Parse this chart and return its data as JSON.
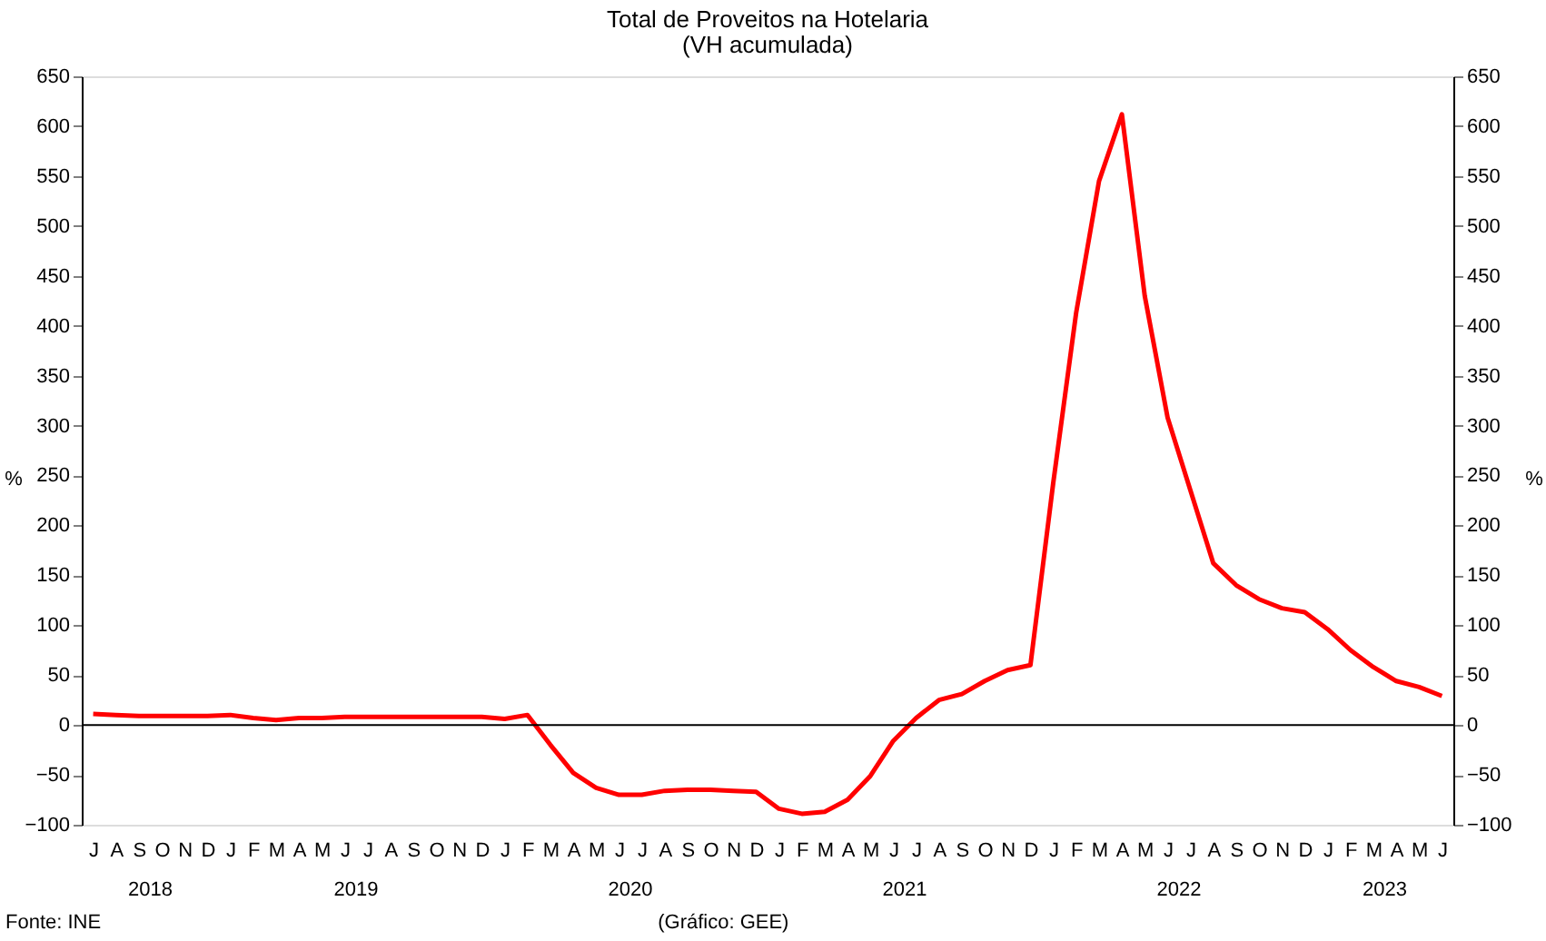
{
  "chart_data": {
    "type": "line",
    "title": "Total de Proveitos na Hotelaria",
    "subtitle": "(VH acumulada)",
    "ylabel": "%",
    "y2label": "%",
    "categories": [
      "J",
      "A",
      "S",
      "O",
      "N",
      "D",
      "J",
      "F",
      "M",
      "A",
      "M",
      "J",
      "J",
      "A",
      "S",
      "O",
      "N",
      "D",
      "J",
      "F",
      "M",
      "A",
      "M",
      "J",
      "J",
      "A",
      "S",
      "O",
      "N",
      "D",
      "J",
      "F",
      "M",
      "A",
      "M",
      "J",
      "J",
      "A",
      "S",
      "O",
      "N",
      "D",
      "J",
      "F",
      "M",
      "A",
      "M",
      "J",
      "J",
      "A",
      "S",
      "O",
      "N",
      "D",
      "J",
      "F",
      "M",
      "A",
      "M",
      "J"
    ],
    "series": [
      {
        "color": "#ff0000",
        "values": [
          11,
          10,
          9,
          9,
          9,
          9,
          10,
          7,
          5,
          7,
          7,
          8,
          8,
          8,
          8,
          8,
          8,
          8,
          6,
          10,
          -20,
          -48,
          -63,
          -70,
          -70,
          -66,
          -65,
          -65,
          -66,
          -67,
          -84,
          -89,
          -87,
          -75,
          -51,
          -16,
          7,
          25,
          31,
          44,
          55,
          60,
          243,
          413,
          545,
          612,
          430,
          308,
          235,
          162,
          140,
          126,
          117,
          113,
          96,
          75,
          58,
          44,
          38,
          29
        ]
      }
    ],
    "ylim": [
      -100,
      650
    ],
    "yticks": [
      -100,
      -50,
      0,
      50,
      100,
      150,
      200,
      250,
      300,
      350,
      400,
      450,
      500,
      550,
      600,
      650
    ],
    "y2lim": [
      -100,
      650
    ],
    "y2ticks": [
      -100,
      -50,
      0,
      50,
      100,
      150,
      200,
      250,
      300,
      350,
      400,
      450,
      500,
      550,
      600,
      650
    ],
    "ref_lines": [
      {
        "axis": "y",
        "value": 0,
        "color": "#000000"
      }
    ],
    "annotations": [
      "2018",
      "2019",
      "2020",
      "2021",
      "2022",
      "2023",
      "Fonte: INE",
      "(Gráfico: GEE)"
    ],
    "grid": false,
    "legend": false,
    "marker": "none",
    "line_style": "solid"
  }
}
